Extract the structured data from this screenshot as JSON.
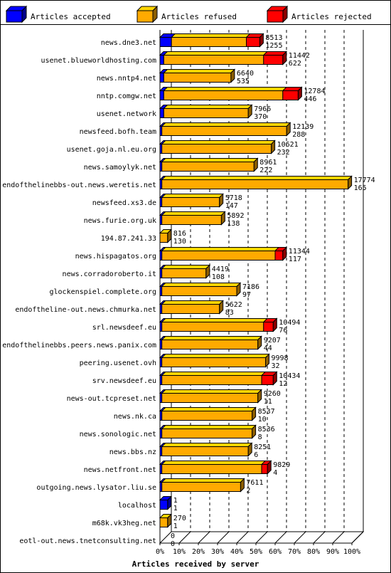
{
  "chart_data": {
    "type": "bar",
    "orientation": "horizontal",
    "stacked": true,
    "xlabel": "Articles received by server",
    "xlim": [
      0,
      100
    ],
    "xunit": "%",
    "xticks": [
      "0%",
      "10%",
      "20%",
      "30%",
      "40%",
      "50%",
      "60%",
      "70%",
      "80%",
      "90%",
      "100%"
    ],
    "grid": true,
    "legend_position": "top",
    "series": [
      {
        "name": "Articles accepted",
        "color": "#0000ff"
      },
      {
        "name": "Articles refused",
        "color": "#ffaa00"
      },
      {
        "name": "Articles rejected",
        "color": "#ff0000"
      }
    ],
    "rows": [
      {
        "server": "news.dne3.net",
        "total": "8513",
        "rejected": "1255",
        "accepted_pct": 6,
        "refused_pct": 39,
        "rejected_pct": 7
      },
      {
        "server": "usenet.blueworldhosting.com",
        "total": "11442",
        "rejected": "622",
        "accepted_pct": 2,
        "refused_pct": 52,
        "rejected_pct": 10
      },
      {
        "server": "news.nntp4.net",
        "total": "6640",
        "rejected": "535",
        "accepted_pct": 2,
        "refused_pct": 35,
        "rejected_pct": 0
      },
      {
        "server": "nntp.comgw.net",
        "total": "12784",
        "rejected": "446",
        "accepted_pct": 2,
        "refused_pct": 62,
        "rejected_pct": 8
      },
      {
        "server": "usenet.network",
        "total": "7966",
        "rejected": "370",
        "accepted_pct": 2,
        "refused_pct": 44,
        "rejected_pct": 0
      },
      {
        "server": "newsfeed.bofh.team",
        "total": "12139",
        "rejected": "288",
        "accepted_pct": 1,
        "refused_pct": 65,
        "rejected_pct": 0
      },
      {
        "server": "usenet.goja.nl.eu.org",
        "total": "10621",
        "rejected": "232",
        "accepted_pct": 1,
        "refused_pct": 57,
        "rejected_pct": 0
      },
      {
        "server": "news.samoylyk.net",
        "total": "8961",
        "rejected": "222",
        "accepted_pct": 1,
        "refused_pct": 48,
        "rejected_pct": 0
      },
      {
        "server": "endofthelinebbs-out.news.weretis.net",
        "total": "17774",
        "rejected": "165",
        "accepted_pct": 1,
        "refused_pct": 97,
        "rejected_pct": 0
      },
      {
        "server": "newsfeed.xs3.de",
        "total": "5718",
        "rejected": "147",
        "accepted_pct": 1,
        "refused_pct": 30,
        "rejected_pct": 0
      },
      {
        "server": "news.furie.org.uk",
        "total": "5892",
        "rejected": "138",
        "accepted_pct": 1,
        "refused_pct": 31,
        "rejected_pct": 0
      },
      {
        "server": "194.87.241.33",
        "total": "816",
        "rejected": "130",
        "accepted_pct": 0,
        "refused_pct": 4,
        "rejected_pct": 0
      },
      {
        "server": "news.hispagatos.org",
        "total": "11344",
        "rejected": "117",
        "accepted_pct": 1,
        "refused_pct": 59,
        "rejected_pct": 4
      },
      {
        "server": "news.corradoroberto.it",
        "total": "4419",
        "rejected": "108",
        "accepted_pct": 1,
        "refused_pct": 23,
        "rejected_pct": 0
      },
      {
        "server": "glockenspiel.complete.org",
        "total": "7186",
        "rejected": "97",
        "accepted_pct": 1,
        "refused_pct": 39,
        "rejected_pct": 0
      },
      {
        "server": "endoftheline-out.news.chmurka.net",
        "total": "5622",
        "rejected": "83",
        "accepted_pct": 1,
        "refused_pct": 30,
        "rejected_pct": 0
      },
      {
        "server": "srl.newsdeef.eu",
        "total": "10494",
        "rejected": "76",
        "accepted_pct": 1,
        "refused_pct": 53,
        "rejected_pct": 5
      },
      {
        "server": "endofthelinebbs.peers.news.panix.com",
        "total": "9207",
        "rejected": "44",
        "accepted_pct": 1,
        "refused_pct": 50,
        "rejected_pct": 0
      },
      {
        "server": "peering.usenet.ovh",
        "total": "9998",
        "rejected": "32",
        "accepted_pct": 1,
        "refused_pct": 54,
        "rejected_pct": 0
      },
      {
        "server": "srv.newsdeef.eu",
        "total": "10434",
        "rejected": "12",
        "accepted_pct": 1,
        "refused_pct": 52,
        "rejected_pct": 6
      },
      {
        "server": "news-out.tcpreset.net",
        "total": "9260",
        "rejected": "11",
        "accepted_pct": 1,
        "refused_pct": 50,
        "rejected_pct": 0
      },
      {
        "server": "news.nk.ca",
        "total": "8537",
        "rejected": "10",
        "accepted_pct": 1,
        "refused_pct": 47,
        "rejected_pct": 0
      },
      {
        "server": "news.sonologic.net",
        "total": "8536",
        "rejected": "8",
        "accepted_pct": 1,
        "refused_pct": 47,
        "rejected_pct": 0
      },
      {
        "server": "news.bbs.nz",
        "total": "8251",
        "rejected": "6",
        "accepted_pct": 1,
        "refused_pct": 45,
        "rejected_pct": 0
      },
      {
        "server": "news.netfront.net",
        "total": "9829",
        "rejected": "4",
        "accepted_pct": 1,
        "refused_pct": 52,
        "rejected_pct": 3
      },
      {
        "server": "outgoing.news.lysator.liu.se",
        "total": "7611",
        "rejected": "2",
        "accepted_pct": 1,
        "refused_pct": 41,
        "rejected_pct": 0
      },
      {
        "server": "localhost",
        "total": "1",
        "rejected": "1",
        "accepted_pct": 4,
        "refused_pct": 0,
        "rejected_pct": 0
      },
      {
        "server": "m68k.vk3heg.net",
        "total": "270",
        "rejected": "1",
        "accepted_pct": 0,
        "refused_pct": 4,
        "rejected_pct": 0
      },
      {
        "server": "eotl-out.news.tnetconsulting.net",
        "total": "0",
        "rejected": "0",
        "accepted_pct": 0,
        "refused_pct": 0,
        "rejected_pct": 0
      }
    ]
  }
}
